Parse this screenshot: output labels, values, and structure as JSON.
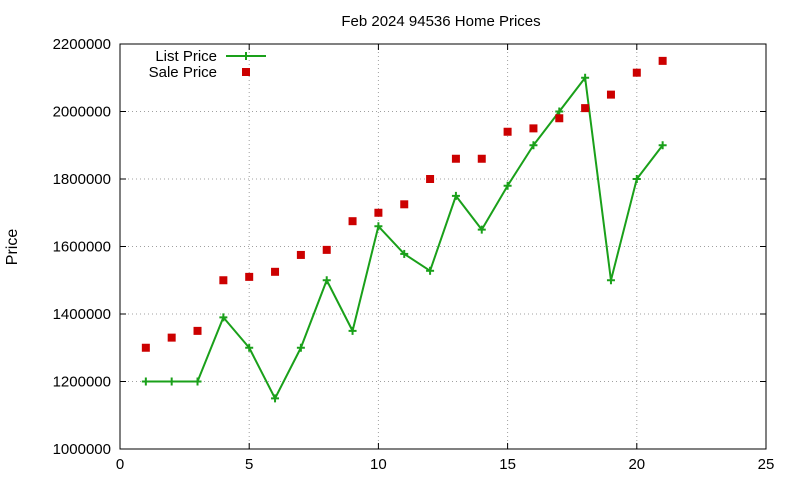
{
  "chart_data": {
    "type": "line",
    "title": "Feb 2024 94536 Home Prices",
    "xlabel": "",
    "ylabel": "Price",
    "xlim": [
      0,
      25
    ],
    "ylim": [
      1000000,
      2200000
    ],
    "x_ticks": [
      0,
      5,
      10,
      15,
      20,
      25
    ],
    "y_ticks": [
      1000000,
      1200000,
      1400000,
      1600000,
      1800000,
      2000000,
      2200000
    ],
    "grid": true,
    "legend_position": "top-left",
    "series": [
      {
        "name": "List Price",
        "style": "line-points",
        "marker": "plus",
        "color": "#1aa01a",
        "x": [
          1,
          2,
          3,
          4,
          5,
          6,
          7,
          8,
          9,
          10,
          11,
          12,
          13,
          14,
          15,
          16,
          17,
          18,
          19,
          20,
          21
        ],
        "y": [
          1200000,
          1200000,
          1200000,
          1390000,
          1300000,
          1150000,
          1300000,
          1500000,
          1350000,
          1660000,
          1578000,
          1528000,
          1750000,
          1650000,
          1780000,
          1900000,
          2000000,
          2100000,
          1500000,
          1800000,
          1900000
        ]
      },
      {
        "name": "Sale Price",
        "style": "points",
        "marker": "square",
        "color": "#cc0000",
        "x": [
          1,
          2,
          3,
          4,
          5,
          6,
          7,
          8,
          9,
          10,
          11,
          12,
          13,
          14,
          15,
          16,
          17,
          18,
          19,
          20,
          21
        ],
        "y": [
          1300000,
          1330000,
          1350000,
          1500000,
          1510000,
          1525000,
          1575000,
          1590000,
          1675000,
          1700000,
          1725000,
          1800000,
          1860000,
          1860000,
          1940000,
          1950000,
          1980000,
          2010000,
          2050000,
          2115000,
          2150000
        ]
      }
    ]
  }
}
